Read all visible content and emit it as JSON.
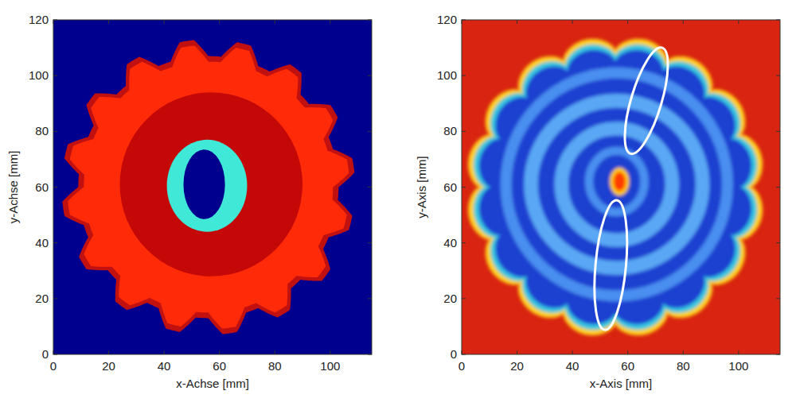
{
  "chart_data": [
    {
      "type": "image",
      "xlabel": "x-Achse [mm]",
      "ylabel": "y-Achse [mm]",
      "xlim": [
        0,
        115
      ],
      "ylim": [
        0,
        120
      ],
      "xticks": [
        0,
        20,
        40,
        60,
        80,
        100
      ],
      "yticks": [
        0,
        20,
        40,
        60,
        80,
        100,
        120
      ],
      "color": "#00008e",
      "regions": [
        {
          "type": "gear",
          "center": [
            56,
            60
          ],
          "r_outer": 53,
          "r_inner": 47,
          "teeth": 16,
          "color": "#c01010"
        },
        {
          "type": "gear",
          "center": [
            56,
            60
          ],
          "r_outer": 51,
          "r_inner": 45,
          "teeth": 16,
          "color": "#ff2a08"
        },
        {
          "type": "ellipse",
          "center": [
            57,
            61
          ],
          "radii": [
            33,
            33
          ],
          "color": "#c40808"
        },
        {
          "type": "ellipse",
          "center": [
            55.5,
            60.5
          ],
          "radii": [
            14.5,
            16.5
          ],
          "color": "#40e8d8"
        },
        {
          "type": "ellipse",
          "center": [
            54.5,
            61
          ],
          "radii": [
            7.5,
            12.5
          ],
          "color": "#00008e"
        }
      ]
    },
    {
      "type": "image",
      "xlabel": "x-Axis [mm]",
      "ylabel": "y-Axis [mm]",
      "xlim": [
        0,
        115
      ],
      "ylim": [
        0,
        120
      ],
      "xticks": [
        0,
        20,
        40,
        60,
        80,
        100
      ],
      "yticks": [
        0,
        20,
        40,
        60,
        80,
        100,
        120
      ],
      "color": "#d82410",
      "regions": [
        {
          "type": "scallop",
          "center": [
            55.5,
            60
          ],
          "r_outer": 54,
          "r_inner": 49,
          "teeth": 16,
          "color": "#ffd21a"
        },
        {
          "type": "scallop",
          "center": [
            55.5,
            60
          ],
          "r_outer": 52,
          "r_inner": 47,
          "teeth": 16,
          "color": "#37c8e0"
        },
        {
          "type": "scallop",
          "center": [
            55.5,
            60
          ],
          "r_outer": 50,
          "r_inner": 45,
          "teeth": 16,
          "color": "#1a3fd0"
        },
        {
          "type": "ring",
          "center": [
            56,
            61
          ],
          "radii": [
            40,
            40
          ],
          "width": 4,
          "color": "#4a8ff0"
        },
        {
          "type": "ring",
          "center": [
            56,
            61
          ],
          "radii": [
            31,
            30
          ],
          "width": 5,
          "color": "#5aa8f5"
        },
        {
          "type": "ring",
          "center": [
            56,
            61
          ],
          "radii": [
            20,
            20
          ],
          "width": 5,
          "color": "#5aa8f5"
        },
        {
          "type": "ring",
          "center": [
            56,
            62
          ],
          "radii": [
            10,
            11
          ],
          "width": 3,
          "color": "#4a90f0"
        },
        {
          "type": "ellipse",
          "center": [
            57,
            62
          ],
          "radii": [
            3.5,
            5
          ],
          "color": "#ffcc00"
        },
        {
          "type": "ellipse",
          "center": [
            57,
            62
          ],
          "radii": [
            2.2,
            3.4
          ],
          "color": "#ff3a00"
        }
      ],
      "annotations": [
        {
          "type": "ellipse",
          "from": [
            61,
            72
          ],
          "to": [
            72.4,
            110
          ],
          "width": 11,
          "color": "#ffffff"
        },
        {
          "type": "ellipse",
          "from": [
            51.7,
            8.8
          ],
          "to": [
            56,
            55.3
          ],
          "width": 11,
          "color": "#ffffff"
        }
      ]
    }
  ]
}
